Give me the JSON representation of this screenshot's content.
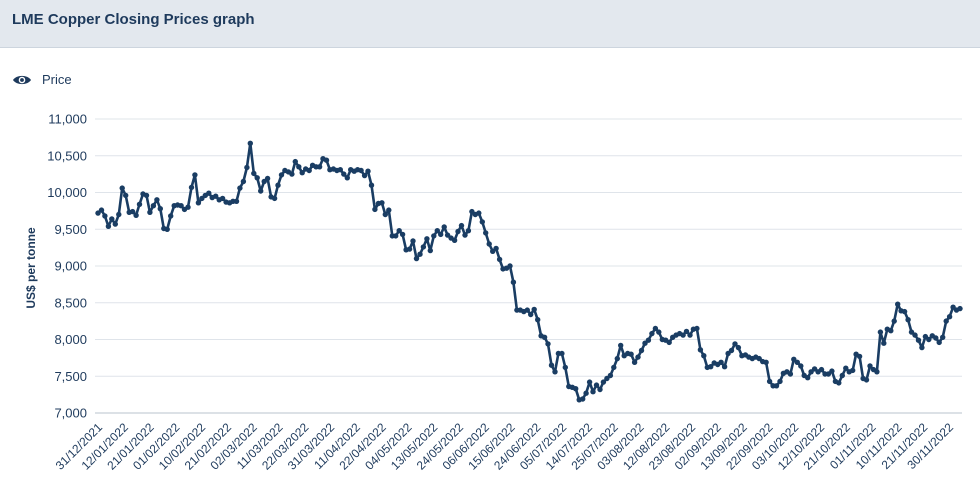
{
  "header": {
    "title": "LME Copper Closing Prices graph"
  },
  "legend": {
    "items": [
      {
        "label": "Price",
        "icon": "eye-icon"
      }
    ]
  },
  "colors": {
    "series": "#1a3d63",
    "grid": "#dfe4ea",
    "header_bg": "#e3e8ee",
    "text": "#1e3a5c"
  },
  "chart_data": {
    "type": "line",
    "title": "LME Copper Closing Prices graph",
    "xlabel": "",
    "ylabel": "US$ per tonne",
    "ylim": [
      7000,
      11000
    ],
    "yticks": [
      7000,
      7500,
      8000,
      8500,
      9000,
      9500,
      10000,
      10500,
      11000
    ],
    "ytick_labels": [
      "7,000",
      "7,500",
      "8,000",
      "8,500",
      "9,000",
      "9,500",
      "10,000",
      "10,500",
      "11,000"
    ],
    "x_tick_labels": [
      "31/12/2021",
      "12/01/2022",
      "21/01/2022",
      "01/02/2022",
      "10/02/2022",
      "21/02/2022",
      "02/03/2022",
      "11/03/2022",
      "22/03/2022",
      "31/03/2022",
      "11/04/2022",
      "22/04/2022",
      "04/05/2022",
      "13/05/2022",
      "24/05/2022",
      "06/06/2022",
      "15/06/2022",
      "24/06/2022",
      "05/07/2022",
      "14/07/2022",
      "25/07/2022",
      "03/08/2022",
      "12/08/2022",
      "23/08/2022",
      "02/09/2022",
      "13/09/2022",
      "22/09/2022",
      "03/10/2022",
      "12/10/2022",
      "21/10/2022",
      "01/11/2022",
      "10/11/2022",
      "21/11/2022",
      "30/11/2022"
    ],
    "grid": true,
    "legend_position": "top-left",
    "series": [
      {
        "name": "Price",
        "values": [
          9720,
          9760,
          9680,
          9540,
          9640,
          9570,
          9700,
          10060,
          9960,
          9730,
          9740,
          9690,
          9840,
          9980,
          9960,
          9730,
          9820,
          9900,
          9780,
          9510,
          9500,
          9680,
          9820,
          9830,
          9820,
          9770,
          9800,
          10070,
          10240,
          9860,
          9920,
          9960,
          9990,
          9930,
          9950,
          9900,
          9920,
          9870,
          9860,
          9880,
          9880,
          10060,
          10150,
          10340,
          10670,
          10260,
          10200,
          10020,
          10150,
          10190,
          9940,
          9920,
          10100,
          10240,
          10300,
          10280,
          10250,
          10420,
          10350,
          10270,
          10320,
          10300,
          10370,
          10350,
          10350,
          10460,
          10440,
          10310,
          10320,
          10300,
          10310,
          10250,
          10200,
          10310,
          10290,
          10310,
          10300,
          10230,
          10290,
          10100,
          9770,
          9850,
          9860,
          9700,
          9760,
          9410,
          9410,
          9480,
          9430,
          9220,
          9230,
          9340,
          9100,
          9160,
          9260,
          9370,
          9210,
          9410,
          9480,
          9430,
          9530,
          9420,
          9380,
          9350,
          9470,
          9550,
          9420,
          9480,
          9740,
          9700,
          9720,
          9600,
          9450,
          9300,
          9200,
          9240,
          9090,
          8960,
          8970,
          9000,
          8780,
          8400,
          8400,
          8380,
          8400,
          8340,
          8410,
          8270,
          8050,
          8030,
          7940,
          7650,
          7560,
          7810,
          7810,
          7620,
          7360,
          7350,
          7330,
          7180,
          7190,
          7270,
          7420,
          7290,
          7380,
          7320,
          7420,
          7470,
          7510,
          7620,
          7740,
          7920,
          7780,
          7810,
          7800,
          7690,
          7760,
          7850,
          7950,
          7990,
          8080,
          8150,
          8100,
          8000,
          7990,
          7960,
          8030,
          8060,
          8080,
          8060,
          8110,
          8060,
          8140,
          8150,
          7860,
          7780,
          7620,
          7630,
          7680,
          7660,
          7690,
          7630,
          7810,
          7850,
          7940,
          7890,
          7780,
          7790,
          7760,
          7740,
          7760,
          7740,
          7700,
          7690,
          7430,
          7370,
          7370,
          7430,
          7540,
          7560,
          7530,
          7730,
          7690,
          7640,
          7510,
          7480,
          7560,
          7600,
          7560,
          7590,
          7530,
          7530,
          7570,
          7430,
          7410,
          7510,
          7610,
          7560,
          7580,
          7800,
          7770,
          7470,
          7450,
          7640,
          7590,
          7560,
          8100,
          7950,
          8140,
          8120,
          8250,
          8480,
          8390,
          8380,
          8270,
          8100,
          8060,
          7990,
          7890,
          8040,
          8000,
          8050,
          8020,
          7960,
          8030,
          8250,
          8310,
          8440,
          8400,
          8420
        ]
      }
    ]
  }
}
